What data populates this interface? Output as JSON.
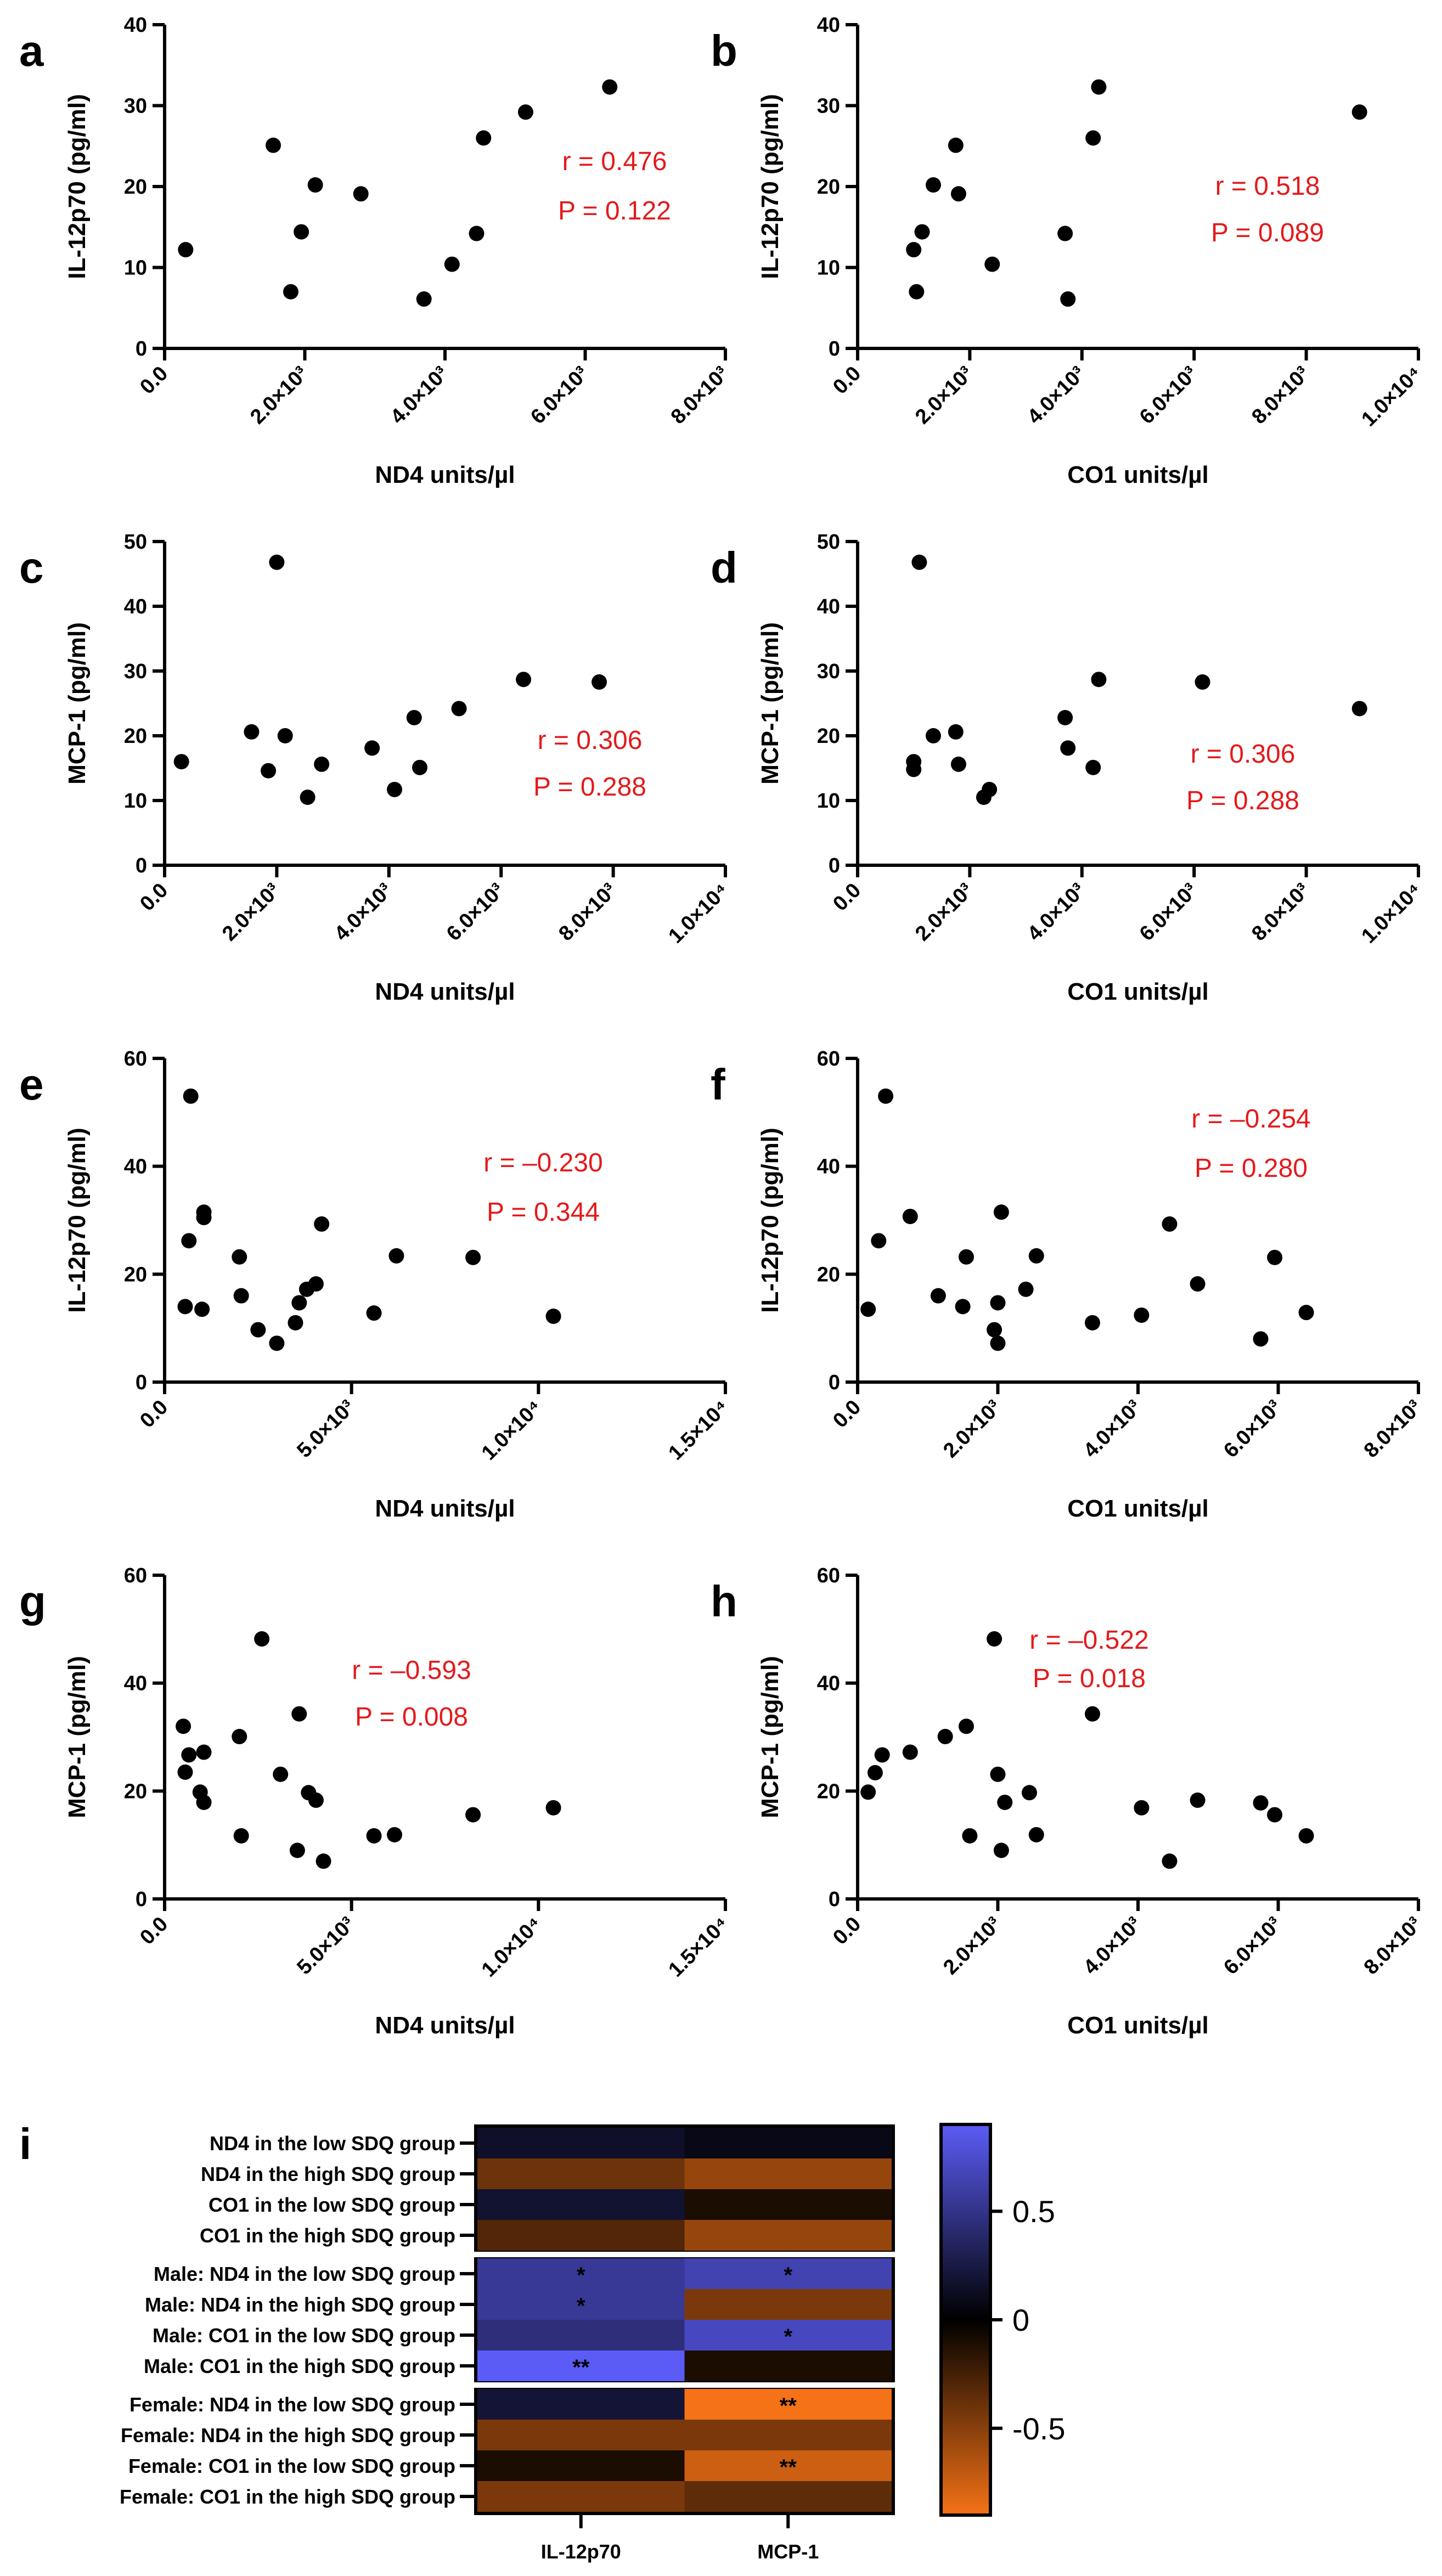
{
  "chart_data": [
    {
      "panel": "a",
      "type": "scatter",
      "xlabel": "ND4 units/µl",
      "ylabel": "IL-12p70 (pg/ml)",
      "xlim": [
        0,
        8000
      ],
      "ylim": [
        0,
        40
      ],
      "xticks": [
        0,
        2000,
        4000,
        6000,
        8000
      ],
      "xtick_labels": [
        "0.0",
        "2.0×10³",
        "4.0×10³",
        "6.0×10³",
        "8.0×10³"
      ],
      "yticks": [
        0,
        10,
        20,
        30,
        40
      ],
      "points": [
        [
          300,
          12.2
        ],
        [
          1550,
          25.1
        ],
        [
          1800,
          7.0
        ],
        [
          1950,
          14.4
        ],
        [
          2150,
          20.2
        ],
        [
          2800,
          19.1
        ],
        [
          3700,
          6.1
        ],
        [
          4100,
          10.4
        ],
        [
          4450,
          14.2
        ],
        [
          4550,
          26.0
        ],
        [
          5150,
          29.2
        ],
        [
          6350,
          32.3
        ]
      ],
      "stats": {
        "r": "r = 0.476",
        "p": "P = 0.122"
      }
    },
    {
      "panel": "b",
      "type": "scatter",
      "xlabel": "CO1 units/µl",
      "ylabel": "IL-12p70 (pg/ml)",
      "xlim": [
        0,
        10000
      ],
      "ylim": [
        0,
        40
      ],
      "xticks": [
        0,
        2000,
        4000,
        6000,
        8000,
        10000
      ],
      "xtick_labels": [
        "0.0",
        "2.0×10³",
        "4.0×10³",
        "6.0×10³",
        "8.0×10³",
        "1.0×10⁴"
      ],
      "yticks": [
        0,
        10,
        20,
        30,
        40
      ],
      "points": [
        [
          1000,
          12.2
        ],
        [
          1050,
          7.0
        ],
        [
          1150,
          14.4
        ],
        [
          1350,
          20.2
        ],
        [
          1750,
          25.1
        ],
        [
          1800,
          19.1
        ],
        [
          2400,
          10.4
        ],
        [
          3700,
          14.2
        ],
        [
          3750,
          6.1
        ],
        [
          4200,
          26.0
        ],
        [
          4300,
          32.3
        ],
        [
          8950,
          29.2
        ]
      ],
      "stats": {
        "r": "r = 0.518",
        "p": "P = 0.089"
      }
    },
    {
      "panel": "c",
      "type": "scatter",
      "xlabel": "ND4 units/µl",
      "ylabel": "MCP-1 (pg/ml)",
      "xlim": [
        0,
        10000
      ],
      "ylim": [
        0,
        50
      ],
      "xticks": [
        0,
        2000,
        4000,
        6000,
        8000,
        10000
      ],
      "xtick_labels": [
        "0.0",
        "2.0×10³",
        "4.0×10³",
        "6.0×10³",
        "8.0×10³",
        "1.0×10⁴"
      ],
      "yticks": [
        0,
        10,
        20,
        30,
        40,
        50
      ],
      "points": [
        [
          300,
          16.0
        ],
        [
          1550,
          20.6
        ],
        [
          1850,
          14.6
        ],
        [
          2000,
          46.8
        ],
        [
          2150,
          20.0
        ],
        [
          2550,
          10.5
        ],
        [
          2800,
          15.6
        ],
        [
          3700,
          18.1
        ],
        [
          4100,
          11.7
        ],
        [
          4450,
          22.8
        ],
        [
          4550,
          15.1
        ],
        [
          5250,
          24.2
        ],
        [
          6400,
          28.7
        ],
        [
          7750,
          28.3
        ]
      ],
      "stats": {
        "r": "r = 0.306",
        "p": "P = 0.288"
      }
    },
    {
      "panel": "d",
      "type": "scatter",
      "xlabel": "CO1 units/µl",
      "ylabel": "MCP-1 (pg/ml)",
      "xlim": [
        0,
        10000
      ],
      "ylim": [
        0,
        50
      ],
      "xticks": [
        0,
        2000,
        4000,
        6000,
        8000,
        10000
      ],
      "xtick_labels": [
        "0.0",
        "2.0×10³",
        "4.0×10³",
        "6.0×10³",
        "8.0×10³",
        "1.0×10⁴"
      ],
      "yticks": [
        0,
        10,
        20,
        30,
        40,
        50
      ],
      "points": [
        [
          1000,
          16.0
        ],
        [
          1000,
          14.8
        ],
        [
          1100,
          46.8
        ],
        [
          1350,
          20.0
        ],
        [
          1750,
          20.6
        ],
        [
          1800,
          15.6
        ],
        [
          2250,
          10.5
        ],
        [
          2350,
          11.7
        ],
        [
          3700,
          22.8
        ],
        [
          3750,
          18.1
        ],
        [
          4200,
          15.1
        ],
        [
          4300,
          28.7
        ],
        [
          6150,
          28.3
        ],
        [
          8950,
          24.2
        ]
      ],
      "stats": {
        "r": "r = 0.306",
        "p": "P = 0.288"
      }
    },
    {
      "panel": "e",
      "type": "scatter",
      "xlabel": "ND4 units/µl",
      "ylabel": "IL-12p70 (pg/ml)",
      "xlim": [
        0,
        15000
      ],
      "ylim": [
        0,
        60
      ],
      "xticks": [
        0,
        5000,
        10000,
        15000
      ],
      "xtick_labels": [
        "0.0",
        "5.0×10³",
        "1.0×10⁴",
        "1.5×10⁴"
      ],
      "yticks": [
        0,
        20,
        40,
        60
      ],
      "points": [
        [
          550,
          14.0
        ],
        [
          650,
          26.2
        ],
        [
          700,
          53.0
        ],
        [
          1000,
          13.5
        ],
        [
          1050,
          31.5
        ],
        [
          1050,
          30.5
        ],
        [
          2000,
          23.2
        ],
        [
          2050,
          16.0
        ],
        [
          2500,
          9.7
        ],
        [
          3000,
          7.2
        ],
        [
          3500,
          11.0
        ],
        [
          3600,
          14.7
        ],
        [
          3800,
          17.2
        ],
        [
          4050,
          18.2
        ],
        [
          4200,
          29.3
        ],
        [
          5600,
          12.8
        ],
        [
          6200,
          23.4
        ],
        [
          8250,
          23.1
        ],
        [
          10400,
          12.2
        ]
      ],
      "stats": {
        "r": "r = –0.230",
        "p": "P = 0.344"
      }
    },
    {
      "panel": "f",
      "type": "scatter",
      "xlabel": "CO1 units/µl",
      "ylabel": "IL-12p70 (pg/ml)",
      "xlim": [
        0,
        8000
      ],
      "ylim": [
        0,
        60
      ],
      "xticks": [
        0,
        2000,
        4000,
        6000,
        8000
      ],
      "xtick_labels": [
        "0.0",
        "2.0×10³",
        "4.0×10³",
        "6.0×10³",
        "8.0×10³"
      ],
      "yticks": [
        0,
        20,
        40,
        60
      ],
      "points": [
        [
          150,
          13.5
        ],
        [
          300,
          26.2
        ],
        [
          400,
          53.0
        ],
        [
          750,
          30.7
        ],
        [
          1150,
          16.0
        ],
        [
          1500,
          14.0
        ],
        [
          1550,
          23.2
        ],
        [
          1950,
          9.7
        ],
        [
          2000,
          14.7
        ],
        [
          2000,
          7.2
        ],
        [
          2050,
          31.5
        ],
        [
          2400,
          17.2
        ],
        [
          2550,
          23.4
        ],
        [
          3350,
          11.0
        ],
        [
          4050,
          12.4
        ],
        [
          4450,
          29.3
        ],
        [
          4850,
          18.2
        ],
        [
          5750,
          8.0
        ],
        [
          5950,
          23.1
        ],
        [
          6400,
          12.9
        ]
      ],
      "stats": {
        "r": "r = –0.254",
        "p": "P = 0.280"
      }
    },
    {
      "panel": "g",
      "type": "scatter",
      "xlabel": "ND4 units/µl",
      "ylabel": "MCP-1 (pg/ml)",
      "xlim": [
        0,
        15000
      ],
      "ylim": [
        0,
        60
      ],
      "xticks": [
        0,
        5000,
        10000,
        15000
      ],
      "xtick_labels": [
        "0.0",
        "5.0×10³",
        "1.0×10⁴",
        "1.5×10⁴"
      ],
      "yticks": [
        0,
        20,
        40,
        60
      ],
      "points": [
        [
          500,
          32.0
        ],
        [
          550,
          23.5
        ],
        [
          650,
          26.7
        ],
        [
          950,
          19.8
        ],
        [
          1050,
          27.2
        ],
        [
          1050,
          17.9
        ],
        [
          2000,
          30.1
        ],
        [
          2050,
          11.7
        ],
        [
          2600,
          48.2
        ],
        [
          3100,
          23.1
        ],
        [
          3550,
          9.0
        ],
        [
          3600,
          34.3
        ],
        [
          3850,
          19.7
        ],
        [
          4050,
          18.3
        ],
        [
          4250,
          7.0
        ],
        [
          5600,
          11.7
        ],
        [
          6150,
          11.9
        ],
        [
          8250,
          15.6
        ],
        [
          10400,
          16.9
        ]
      ],
      "stats": {
        "r": "r = –0.593",
        "p": "P = 0.008"
      }
    },
    {
      "panel": "h",
      "type": "scatter",
      "xlabel": "CO1 units/µl",
      "ylabel": "MCP-1 (pg/ml)",
      "xlim": [
        0,
        8000
      ],
      "ylim": [
        0,
        60
      ],
      "xticks": [
        0,
        2000,
        4000,
        6000,
        8000
      ],
      "xtick_labels": [
        "0.0",
        "2.0×10³",
        "4.0×10³",
        "6.0×10³",
        "8.0×10³"
      ],
      "yticks": [
        0,
        20,
        40,
        60
      ],
      "points": [
        [
          150,
          19.8
        ],
        [
          250,
          23.4
        ],
        [
          350,
          26.7
        ],
        [
          750,
          27.2
        ],
        [
          1250,
          30.1
        ],
        [
          1550,
          32.0
        ],
        [
          1600,
          11.7
        ],
        [
          1950,
          48.2
        ],
        [
          2000,
          23.1
        ],
        [
          2050,
          9.0
        ],
        [
          2100,
          17.9
        ],
        [
          2450,
          19.7
        ],
        [
          2550,
          11.9
        ],
        [
          3350,
          34.3
        ],
        [
          4050,
          16.9
        ],
        [
          4450,
          7.0
        ],
        [
          4850,
          18.3
        ],
        [
          5750,
          17.8
        ],
        [
          5950,
          15.6
        ],
        [
          6400,
          11.7
        ]
      ],
      "stats": {
        "r": "r = –0.522",
        "p": "P = 0.018"
      }
    },
    {
      "panel": "i",
      "type": "heatmap",
      "rows": [
        "ND4 in the low SDQ group",
        "ND4 in the high SDQ group",
        "CO1 in the low SDQ group",
        "CO1 in the high SDQ group",
        "Male: ND4 in the low SDQ group",
        "Male: ND4 in the high SDQ group",
        "Male: CO1 in the low SDQ group",
        "Male: CO1 in the high SDQ group",
        "Female: ND4 in the low SDQ group",
        "Female: ND4 in the high SDQ group",
        "Female: CO1 in the low SDQ group",
        "Female: CO1 in the high SDQ group"
      ],
      "columns": [
        "IL-12p70",
        "MCP-1"
      ],
      "values": [
        [
          0.15,
          0.08
        ],
        [
          -0.4,
          -0.55
        ],
        [
          0.18,
          -0.1
        ],
        [
          -0.3,
          -0.55
        ],
        [
          0.55,
          0.65
        ],
        [
          0.55,
          -0.45
        ],
        [
          0.45,
          0.7
        ],
        [
          0.9,
          -0.1
        ],
        [
          0.2,
          -0.9
        ],
        [
          -0.45,
          -0.45
        ],
        [
          -0.1,
          -0.75
        ],
        [
          -0.45,
          -0.35
        ]
      ],
      "stars": [
        [
          "",
          ""
        ],
        [
          "",
          ""
        ],
        [
          "",
          ""
        ],
        [
          "",
          ""
        ],
        [
          "*",
          "*"
        ],
        [
          "*",
          ""
        ],
        [
          "",
          "*"
        ],
        [
          "**",
          ""
        ],
        [
          "",
          "**"
        ],
        [
          "",
          ""
        ],
        [
          "",
          "**"
        ],
        [
          "",
          ""
        ]
      ],
      "colorbar": {
        "min": -0.9,
        "max": 0.9,
        "ticks": [
          0.5,
          0,
          -0.5
        ],
        "tick_labels": [
          "0.5",
          "0",
          "-0.5"
        ],
        "high_color": "#5b5cf5",
        "mid_color": "#000000",
        "low_color": "#f57216"
      }
    }
  ]
}
